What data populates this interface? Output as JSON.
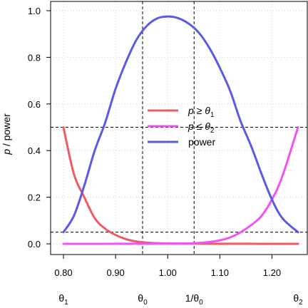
{
  "chart_data": {
    "type": "line",
    "ylabel_main": "p",
    "ylabel_rest": " / power",
    "xlim": [
      0.8,
      1.25
    ],
    "ylim": [
      0,
      1
    ],
    "x_ticks": [
      "0.80",
      "0.90",
      "1.00",
      "1.10",
      "1.20"
    ],
    "x_tick_values": [
      0.8,
      0.9,
      1.0,
      1.1,
      1.2
    ],
    "y_ticks": [
      "0.0",
      "0.2",
      "0.4",
      "0.6",
      "0.8",
      "1.0"
    ],
    "y_tick_values": [
      0,
      0.2,
      0.4,
      0.6,
      0.8,
      1.0
    ],
    "grid": true,
    "reference_lines": {
      "horizontal": [
        0.5,
        0.05
      ],
      "vertical": [
        0.9518,
        1.0506
      ]
    },
    "theta_labels": [
      {
        "base": "θ",
        "sub": "1",
        "x": 0.8
      },
      {
        "base": "θ",
        "sub": "0",
        "x": 0.9518
      },
      {
        "base": "1/θ",
        "sub": "0",
        "x": 1.0506
      },
      {
        "base": "θ",
        "sub": "2",
        "x": 1.25
      }
    ],
    "legend": {
      "position": "center",
      "entries": [
        {
          "label_main": "p ≥ θ",
          "label_sub": "1",
          "color": "#f05a64"
        },
        {
          "label_main": "p ≤ θ",
          "label_sub": "2",
          "color": "#f055f0"
        },
        {
          "label_main": "power",
          "label_sub": "",
          "color": "#5a5ae6"
        }
      ]
    },
    "series": [
      {
        "key": "p1",
        "color": "#f05a64",
        "x": [
          0.8,
          0.82,
          0.84,
          0.86,
          0.88,
          0.9,
          0.92,
          0.94,
          0.96,
          0.98,
          1.0,
          1.05,
          1.1,
          1.15,
          1.2,
          1.25
        ],
        "y": [
          0.5,
          0.3,
          0.2,
          0.11,
          0.065,
          0.038,
          0.02,
          0.01,
          0.005,
          0.003,
          0.002,
          0.001,
          0.0005,
          0.0002,
          0.0001,
          0.0
        ]
      },
      {
        "key": "p2",
        "color": "#f055f0",
        "x": [
          0.8,
          0.85,
          0.9,
          0.95,
          1.0,
          1.04,
          1.06,
          1.08,
          1.1,
          1.12,
          1.14,
          1.16,
          1.18,
          1.2,
          1.22,
          1.25
        ],
        "y": [
          0.0,
          0.0001,
          0.0002,
          0.0005,
          0.001,
          0.002,
          0.004,
          0.008,
          0.015,
          0.028,
          0.05,
          0.08,
          0.12,
          0.19,
          0.29,
          0.5
        ]
      },
      {
        "key": "power",
        "color": "#5a5ae6",
        "x": [
          0.8,
          0.82,
          0.84,
          0.86,
          0.88,
          0.9,
          0.92,
          0.94,
          0.96,
          0.98,
          1.0,
          1.02,
          1.04,
          1.06,
          1.08,
          1.1,
          1.12,
          1.14,
          1.16,
          1.18,
          1.2,
          1.22,
          1.25
        ],
        "y": [
          0.05,
          0.12,
          0.25,
          0.4,
          0.52,
          0.665,
          0.78,
          0.875,
          0.935,
          0.967,
          0.975,
          0.968,
          0.945,
          0.905,
          0.84,
          0.755,
          0.655,
          0.525,
          0.42,
          0.3,
          0.19,
          0.11,
          0.05
        ]
      }
    ]
  }
}
